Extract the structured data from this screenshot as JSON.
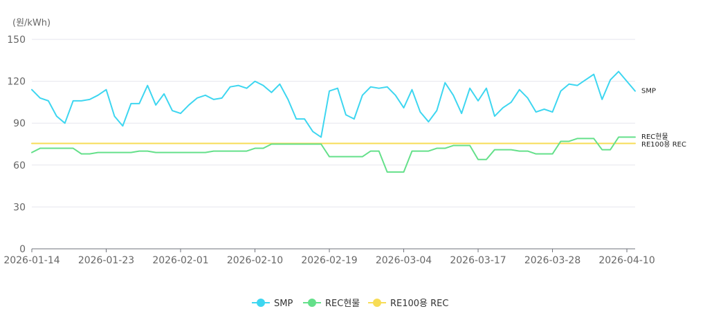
{
  "chart_data": {
    "type": "line",
    "y_unit": "(원/kWh)",
    "ylim": [
      0,
      150
    ],
    "y_ticks": [
      0,
      30,
      60,
      90,
      120,
      150
    ],
    "x_tick_labels": [
      "2026-01-14",
      "2026-01-23",
      "2026-02-01",
      "2026-02-10",
      "2026-02-19",
      "2026-03-04",
      "2026-03-17",
      "2026-03-28",
      "2026-04-10"
    ],
    "grid": "horizontal",
    "legend_position": "bottom",
    "series": [
      {
        "name": "SMP",
        "color": "#3dd6f0",
        "values": [
          114,
          108,
          106,
          95,
          90,
          106,
          106,
          107,
          110,
          114,
          95,
          88,
          104,
          104,
          117,
          103,
          111,
          99,
          97,
          103,
          108,
          110,
          107,
          108,
          116,
          117,
          115,
          120,
          117,
          112,
          118,
          107,
          93,
          93,
          84,
          80,
          113,
          115,
          96,
          93,
          110,
          116,
          115,
          116,
          110,
          101,
          114,
          98,
          91,
          99,
          119,
          110,
          97,
          115,
          106,
          115,
          95,
          101,
          105,
          114,
          108,
          98,
          100,
          98,
          113,
          118,
          117,
          121,
          125,
          107,
          121,
          127,
          120,
          113
        ],
        "end_label": "SMP"
      },
      {
        "name": "REC현물",
        "color": "#64e08a",
        "values": [
          69,
          72,
          72,
          72,
          72,
          72,
          68,
          68,
          69,
          69,
          69,
          69,
          69,
          70,
          70,
          69,
          69,
          69,
          69,
          69,
          69,
          69,
          70,
          70,
          70,
          70,
          70,
          72,
          72,
          75,
          75,
          75,
          75,
          75,
          75,
          75,
          66,
          66,
          66,
          66,
          66,
          70,
          70,
          55,
          55,
          55,
          70,
          70,
          70,
          72,
          72,
          74,
          74,
          74,
          64,
          64,
          71,
          71,
          71,
          70,
          70,
          68,
          68,
          68,
          77,
          77,
          79,
          79,
          79,
          71,
          71,
          80,
          80,
          80
        ],
        "end_label": "REC현물"
      },
      {
        "name": "RE100용 REC",
        "color": "#f7dc55",
        "values": [
          75.5,
          75.5,
          75.5,
          75.5,
          75.5,
          75.5,
          75.5,
          75.5,
          75.5,
          75.5,
          75.5,
          75.5,
          75.5,
          75.5,
          75.5,
          75.5,
          75.5,
          75.5,
          75.5,
          75.5,
          75.5,
          75.5,
          75.5,
          75.5,
          75.5,
          75.5,
          75.5,
          75.5,
          75.5,
          75.5,
          75.5,
          75.5,
          75.5,
          75.5,
          75.5,
          75.5,
          75.5,
          75.5,
          75.5,
          75.5,
          75.5,
          75.5,
          75.5,
          75.5,
          75.5,
          75.5,
          75.5,
          75.5,
          75.5,
          75.5,
          75.5,
          75.5,
          75.5,
          75.5,
          75.5,
          75.5,
          75.5,
          75.5,
          75.5,
          75.5,
          75.5,
          75.5,
          75.5,
          75.5,
          75.5,
          75.5,
          75.5,
          75.5,
          75.5,
          75.5,
          75.5,
          75.5,
          75.5,
          75.5
        ],
        "end_label": "RE100용 REC"
      }
    ]
  }
}
